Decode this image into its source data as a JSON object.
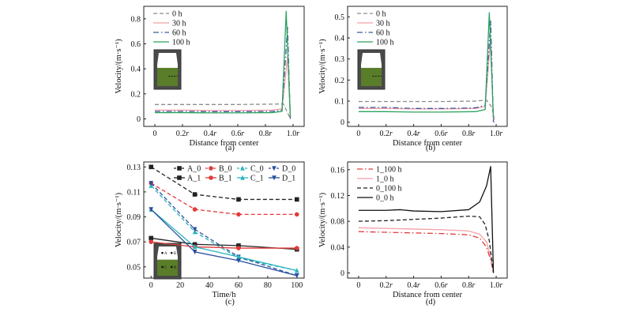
{
  "chart_data": [
    {
      "panel": "(a)",
      "type": "line",
      "caption": "(a)",
      "xlabel": "Distance from center",
      "ylabel": "Velocity/(m·s⁻¹)",
      "x_ticks": [
        0,
        0.2,
        0.4,
        0.6,
        0.8,
        1.0
      ],
      "x_tick_labels": [
        "0",
        "0.2r",
        "0.4r",
        "0.6r",
        "0.8r",
        "1.0r"
      ],
      "y_ticks": [
        0,
        0.2,
        0.4,
        0.6,
        0.8
      ],
      "y_tick_labels": [
        "0",
        "0.2",
        "0.4",
        "0.6",
        "0.8"
      ],
      "xlim": [
        -0.08,
        1.08
      ],
      "ylim": [
        -0.06,
        0.9
      ],
      "legend_position": "top-left",
      "inset": "tank-schematic",
      "series": [
        {
          "name": "0 h",
          "color": "#8c8c8c",
          "dash": "dash",
          "x": [
            0,
            0.2,
            0.4,
            0.6,
            0.85,
            0.93,
            0.96,
            0.98
          ],
          "y": [
            0.115,
            0.115,
            0.115,
            0.115,
            0.118,
            0.12,
            0.05,
            0.0
          ]
        },
        {
          "name": "30 h",
          "color": "#f2a0a8",
          "dash": "solid",
          "x": [
            0,
            0.2,
            0.4,
            0.6,
            0.85,
            0.92,
            0.96,
            0.98
          ],
          "y": [
            0.07,
            0.07,
            0.068,
            0.068,
            0.07,
            0.08,
            0.5,
            0.0
          ]
        },
        {
          "name": "60 h",
          "color": "#3d5a9e",
          "dash": "dashdot",
          "x": [
            0,
            0.2,
            0.4,
            0.6,
            0.85,
            0.92,
            0.96,
            0.98
          ],
          "y": [
            0.06,
            0.06,
            0.058,
            0.058,
            0.06,
            0.07,
            0.73,
            0.0
          ]
        },
        {
          "name": "100 h",
          "color": "#2ca25f",
          "dash": "solid",
          "x": [
            0,
            0.2,
            0.4,
            0.6,
            0.85,
            0.92,
            0.95,
            0.98
          ],
          "y": [
            0.05,
            0.05,
            0.048,
            0.048,
            0.05,
            0.06,
            0.86,
            0.02
          ]
        }
      ]
    },
    {
      "panel": "(b)",
      "type": "line",
      "caption": "(b)",
      "xlabel": "Distance from center",
      "ylabel": "Velocity/(m·s⁻¹)",
      "x_ticks": [
        0,
        0.2,
        0.4,
        0.6,
        0.8,
        1.0
      ],
      "x_tick_labels": [
        "0",
        "0.2r",
        "0.4r",
        "0.6r",
        "0.8r",
        "1.0r"
      ],
      "y_ticks": [
        0,
        0.1,
        0.2,
        0.3,
        0.4,
        0.5
      ],
      "y_tick_labels": [
        "0",
        "0.1",
        "0.2",
        "0.3",
        "0.4",
        "0.5"
      ],
      "xlim": [
        -0.08,
        1.08
      ],
      "ylim": [
        -0.02,
        0.55
      ],
      "legend_position": "top-left",
      "inset": "tank-schematic",
      "series": [
        {
          "name": "0 h",
          "color": "#8c8c8c",
          "dash": "dash",
          "x": [
            0,
            0.2,
            0.4,
            0.6,
            0.85,
            0.93,
            0.97,
            0.99
          ],
          "y": [
            0.098,
            0.098,
            0.098,
            0.098,
            0.1,
            0.105,
            0.07,
            0.0
          ]
        },
        {
          "name": "30 h",
          "color": "#f2a0a8",
          "dash": "solid",
          "x": [
            0,
            0.2,
            0.4,
            0.6,
            0.85,
            0.92,
            0.96,
            0.98
          ],
          "y": [
            0.065,
            0.065,
            0.063,
            0.063,
            0.065,
            0.075,
            0.4,
            0.0
          ]
        },
        {
          "name": "60 h",
          "color": "#3d5a9e",
          "dash": "dashdot",
          "x": [
            0,
            0.2,
            0.4,
            0.6,
            0.85,
            0.92,
            0.96,
            0.98
          ],
          "y": [
            0.07,
            0.07,
            0.065,
            0.065,
            0.068,
            0.08,
            0.48,
            0.0
          ]
        },
        {
          "name": "100 h",
          "color": "#2ca25f",
          "dash": "solid",
          "x": [
            0,
            0.2,
            0.4,
            0.6,
            0.85,
            0.92,
            0.95,
            0.98
          ],
          "y": [
            0.05,
            0.05,
            0.048,
            0.048,
            0.05,
            0.06,
            0.52,
            0.02
          ]
        }
      ]
    },
    {
      "panel": "(c)",
      "type": "line",
      "caption": "(c)",
      "xlabel": "Time/h",
      "ylabel": "Velocity/(m·s⁻¹)",
      "x_ticks": [
        0,
        20,
        40,
        60,
        80,
        100
      ],
      "x_tick_labels": [
        "0",
        "20",
        "40",
        "60",
        "80",
        "100"
      ],
      "y_ticks": [
        0.05,
        0.07,
        0.09,
        0.11,
        0.13
      ],
      "y_tick_labels": [
        "0.05",
        "0.07",
        "0.09",
        "0.11",
        "0.13"
      ],
      "xlim": [
        -5,
        105
      ],
      "ylim": [
        0.041,
        0.134
      ],
      "legend_position": "top",
      "inset": "tank-schematic-with-probes",
      "inset_labels": [
        "A",
        "B",
        "C",
        "D"
      ],
      "series": [
        {
          "name": "A_0",
          "color": "#222222",
          "dash": "dash",
          "marker": "square",
          "x": [
            0,
            30,
            60,
            100
          ],
          "y": [
            0.13,
            0.108,
            0.104,
            0.104
          ]
        },
        {
          "name": "B_0",
          "color": "#e23a3a",
          "dash": "dash",
          "marker": "circle",
          "x": [
            0,
            30,
            60,
            100
          ],
          "y": [
            0.117,
            0.096,
            0.092,
            0.092
          ]
        },
        {
          "name": "C_0",
          "color": "#2bb5bf",
          "dash": "dash",
          "marker": "triangle-up",
          "x": [
            0,
            30,
            60,
            100
          ],
          "y": [
            0.115,
            0.078,
            0.057,
            0.047
          ]
        },
        {
          "name": "D_0",
          "color": "#2b4f9e",
          "dash": "dash",
          "marker": "triangle-down",
          "x": [
            0,
            30,
            60,
            100
          ],
          "y": [
            0.117,
            0.08,
            0.058,
            0.043
          ]
        },
        {
          "name": "A_1",
          "color": "#222222",
          "dash": "solid",
          "marker": "square",
          "x": [
            0,
            30,
            60,
            100
          ],
          "y": [
            0.073,
            0.068,
            0.067,
            0.064
          ]
        },
        {
          "name": "B_1",
          "color": "#e23a3a",
          "dash": "solid",
          "marker": "circle",
          "x": [
            0,
            30,
            60,
            100
          ],
          "y": [
            0.07,
            0.066,
            0.065,
            0.065
          ]
        },
        {
          "name": "C_1",
          "color": "#2bb5bf",
          "dash": "solid",
          "marker": "triangle-up",
          "x": [
            0,
            30,
            60,
            100
          ],
          "y": [
            0.096,
            0.066,
            0.058,
            0.047
          ]
        },
        {
          "name": "D_1",
          "color": "#2b4f9e",
          "dash": "solid",
          "marker": "triangle-down",
          "x": [
            0,
            30,
            60,
            100
          ],
          "y": [
            0.096,
            0.062,
            0.055,
            0.043
          ]
        }
      ]
    },
    {
      "panel": "(d)",
      "type": "line",
      "caption": "(d)",
      "xlabel": "Distance from center",
      "ylabel": "Velocity/(m·s⁻¹)",
      "x_ticks": [
        0,
        0.2,
        0.4,
        0.6,
        0.8,
        1.0
      ],
      "x_tick_labels": [
        "0",
        "0.2r",
        "0.4r",
        "0.6r",
        "0.8r",
        "1.0r"
      ],
      "y_ticks": [
        0,
        0.04,
        0.08,
        0.12,
        0.16
      ],
      "y_tick_labels": [
        "0",
        "0.04",
        "0.08",
        "0.12",
        "0.16"
      ],
      "xlim": [
        -0.08,
        1.08
      ],
      "ylim": [
        -0.008,
        0.172
      ],
      "legend_position": "top-left",
      "series": [
        {
          "name": "1_100 h",
          "color": "#e23a3a",
          "dash": "dashdot",
          "x": [
            0,
            0.2,
            0.4,
            0.6,
            0.8,
            0.88,
            0.93,
            0.96,
            0.98
          ],
          "y": [
            0.064,
            0.063,
            0.062,
            0.061,
            0.059,
            0.054,
            0.04,
            0.02,
            0.0
          ]
        },
        {
          "name": "1_0 h",
          "color": "#f2a0a8",
          "dash": "solid",
          "x": [
            0,
            0.2,
            0.4,
            0.6,
            0.8,
            0.88,
            0.93,
            0.96,
            0.98
          ],
          "y": [
            0.07,
            0.069,
            0.068,
            0.067,
            0.065,
            0.06,
            0.048,
            0.025,
            0.0
          ]
        },
        {
          "name": "0_100 h",
          "color": "#222222",
          "dash": "dash",
          "x": [
            0,
            0.2,
            0.4,
            0.6,
            0.8,
            0.88,
            0.92,
            0.95,
            0.98
          ],
          "y": [
            0.08,
            0.081,
            0.083,
            0.085,
            0.088,
            0.087,
            0.075,
            0.05,
            0.0
          ]
        },
        {
          "name": "0_0 h",
          "color": "#111111",
          "dash": "solid",
          "x": [
            0,
            0.1,
            0.2,
            0.3,
            0.4,
            0.6,
            0.8,
            0.88,
            0.93,
            0.96,
            0.98
          ],
          "y": [
            0.097,
            0.097,
            0.097,
            0.098,
            0.096,
            0.095,
            0.098,
            0.11,
            0.135,
            0.165,
            0.0
          ]
        }
      ]
    }
  ]
}
